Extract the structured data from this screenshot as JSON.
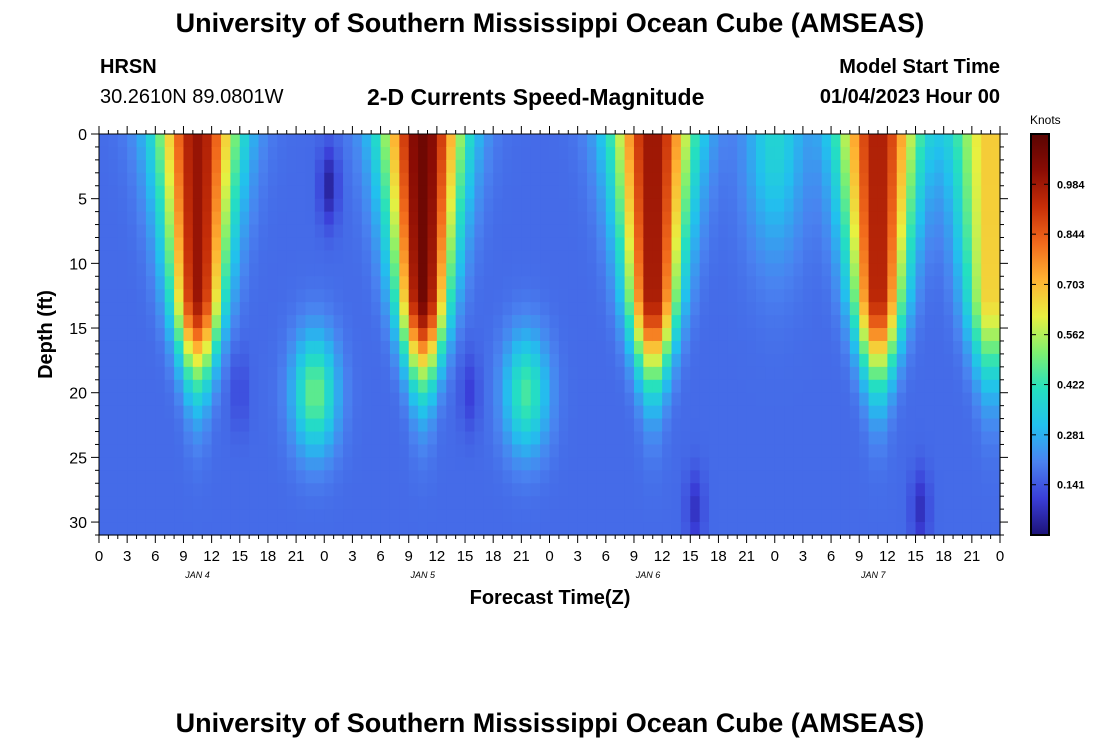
{
  "header": {
    "title": "University of Southern Mississippi Ocean Cube (AMSEAS)",
    "station": "HRSN",
    "coords": "30.2610N  89.0801W",
    "subtitle": "2-D Currents Speed-Magnitude",
    "start_label": "Model Start Time",
    "start_value": "01/04/2023 Hour 00"
  },
  "footer": {
    "title": "University of Southern Mississippi Ocean Cube (AMSEAS)"
  },
  "chart_data": {
    "type": "heatmap",
    "title": "2-D Currents Speed-Magnitude",
    "xlabel": "Forecast Time(Z)",
    "ylabel": "Depth (ft)",
    "xlim": [
      0,
      96
    ],
    "ylim": [
      0,
      31
    ],
    "x_tick_labels": [
      "0",
      "3",
      "6",
      "9",
      "12",
      "15",
      "18",
      "21",
      "0",
      "3",
      "6",
      "9",
      "12",
      "15",
      "18",
      "21",
      "0",
      "3",
      "6",
      "9",
      "12",
      "15",
      "18",
      "21",
      "0",
      "3",
      "6",
      "9",
      "12",
      "15",
      "18",
      "21",
      "0"
    ],
    "day_labels": [
      "JAN 4",
      "JAN 5",
      "JAN 6",
      "JAN 7"
    ],
    "y_ticks": [
      0,
      5,
      10,
      15,
      20,
      25,
      30
    ],
    "colorbar": {
      "label": "Knots",
      "min": 0.0,
      "max": 1.125,
      "ticks": [
        0.141,
        0.281,
        0.422,
        0.562,
        0.703,
        0.844,
        0.984
      ],
      "colors": [
        "#1c1278",
        "#3a3ed8",
        "#4a82f0",
        "#22c0ee",
        "#24e0c0",
        "#7ef070",
        "#e8f040",
        "#ffb232",
        "#f26a1c",
        "#c62e08",
        "#8a0c04",
        "#5a0402"
      ]
    },
    "surface_peaks": [
      {
        "hour": 10.5,
        "speed": 1.0
      },
      {
        "hour": 34.5,
        "speed": 1.08
      },
      {
        "hour": 59,
        "speed": 1.0
      },
      {
        "hour": 83,
        "speed": 0.97
      },
      {
        "hour": 95,
        "speed": 0.68
      }
    ],
    "subsurface_peaks": [
      {
        "hour": 23,
        "depth_ft": 20,
        "speed": 0.5
      },
      {
        "hour": 45.5,
        "depth_ft": 20,
        "speed": 0.46
      }
    ],
    "minima": [
      {
        "hour": 24.5,
        "depth_ft": 4,
        "speed": 0.0
      },
      {
        "hour": 15,
        "depth_ft": 20,
        "speed": 0.1
      },
      {
        "hour": 39.5,
        "depth_ft": 20,
        "speed": 0.08
      },
      {
        "hour": 63.5,
        "depth_ft": 29,
        "speed": 0.05
      },
      {
        "hour": 87.5,
        "depth_ft": 29,
        "speed": 0.04
      }
    ]
  }
}
